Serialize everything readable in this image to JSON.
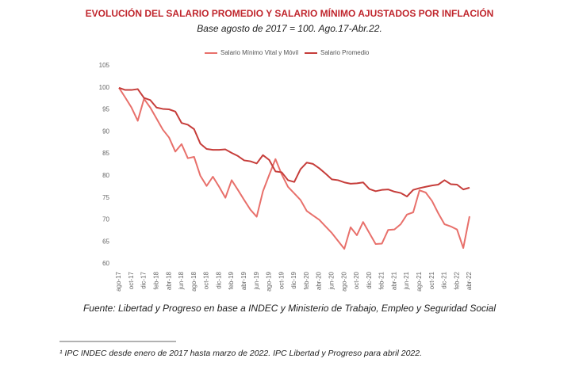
{
  "chart_data": {
    "type": "line",
    "title": "EVOLUCIÓN DEL SALARIO PROMEDIO Y SALARIO MÍNIMO AJUSTADOS POR INFLACIÓN",
    "subtitle": "Base agosto de 2017 = 100. Ago.17-Abr.22.",
    "source": "Fuente: Libertad y Progreso en base a INDEC y Ministerio de Trabajo, Empleo y Seguridad Social",
    "footnote": "¹ IPC INDEC desde enero de 2017 hasta marzo de 2022. IPC Libertad y Progreso para abril 2022.",
    "categories": [
      "ago-17",
      null,
      "oct-17",
      null,
      "dic-17",
      null,
      "feb-18",
      null,
      "abr-18",
      null,
      "jun-18",
      null,
      "ago-18",
      null,
      "oct-18",
      null,
      "dic-18",
      null,
      "feb-19",
      null,
      "abr-19",
      null,
      "jun-19",
      null,
      "ago-19",
      null,
      "oct-19",
      null,
      "dic-19",
      null,
      "feb-20",
      null,
      "abr-20",
      null,
      "jun-20",
      null,
      "ago-20",
      null,
      "oct-20",
      null,
      "dic-20",
      null,
      "feb-21",
      null,
      "abr-21",
      null,
      "jun-21",
      null,
      "ago-21",
      null,
      "oct-21",
      null,
      "dic-21",
      null,
      "feb-22",
      null,
      "abr-22"
    ],
    "series": [
      {
        "name": "Salario Mínimo Vital y Móvil",
        "color": "#e8706b",
        "values": [
          100,
          97.8,
          95.5,
          92.5,
          97.5,
          95.5,
          93,
          90.5,
          88.7,
          85.5,
          87.2,
          84,
          84.3,
          80,
          77.7,
          79.8,
          77.5,
          75,
          79,
          76.8,
          74.5,
          72.3,
          70.7,
          76.5,
          80.2,
          83.8,
          80.3,
          77.5,
          76,
          74.5,
          72,
          71,
          70,
          68.5,
          67,
          65.2,
          63.4,
          68.3,
          66.5,
          69.5,
          67,
          64.5,
          64.6,
          67.7,
          67.8,
          69,
          71.2,
          71.7,
          76.7,
          76.2,
          74.3,
          71.5,
          69,
          68.5,
          67.8,
          63.6,
          70.8
        ]
      },
      {
        "name": "Salario Promedio",
        "color": "#c63d3a",
        "values": [
          100,
          99.5,
          99.5,
          99.7,
          97.7,
          97.2,
          95.5,
          95.2,
          95.1,
          94.6,
          92,
          91.6,
          90.6,
          87.3,
          86.1,
          85.9,
          85.9,
          86,
          85.2,
          84.5,
          83.5,
          83.3,
          82.8,
          84.7,
          83.6,
          81,
          80.8,
          79,
          78.6,
          81.5,
          83,
          82.7,
          81.7,
          80.5,
          79.2,
          79,
          78.5,
          78.2,
          78.3,
          78.5,
          77,
          76.5,
          76.8,
          76.9,
          76.4,
          76.1,
          75.3,
          76.8,
          77.2,
          77.5,
          77.8,
          78,
          79,
          78.1,
          78,
          76.9,
          77.3
        ]
      }
    ],
    "ylim": [
      60,
      105
    ],
    "yticks": [
      60,
      65,
      70,
      75,
      80,
      85,
      90,
      95,
      100,
      105
    ],
    "grid": false,
    "legend": "top"
  }
}
